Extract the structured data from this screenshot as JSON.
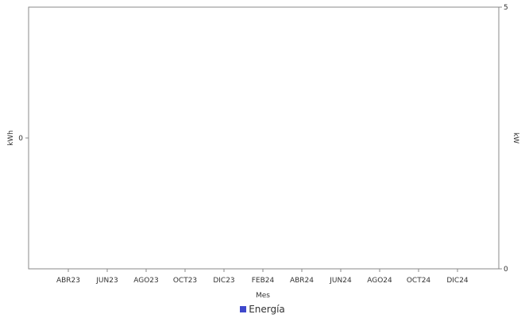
{
  "chart_data": {
    "type": "bar",
    "categories": [
      "ABR23",
      "JUN23",
      "AGO23",
      "OCT23",
      "DIC23",
      "FEB24",
      "ABR24",
      "JUN24",
      "AGO24",
      "OCT24",
      "DIC24"
    ],
    "series": [
      {
        "name": "Energía",
        "values": [
          0,
          0,
          0,
          0,
          0,
          0,
          0,
          0,
          0,
          0,
          0
        ],
        "color": "#3f48cc"
      }
    ],
    "xlabel": "Mes",
    "ylabel": "kWh",
    "ylabel_right": "kW",
    "yticks_left": [
      "0"
    ],
    "yticks_right": [
      "5",
      "0"
    ],
    "ylim_right": [
      0,
      5
    ],
    "grid": false,
    "legend_position": "bottom-center"
  }
}
